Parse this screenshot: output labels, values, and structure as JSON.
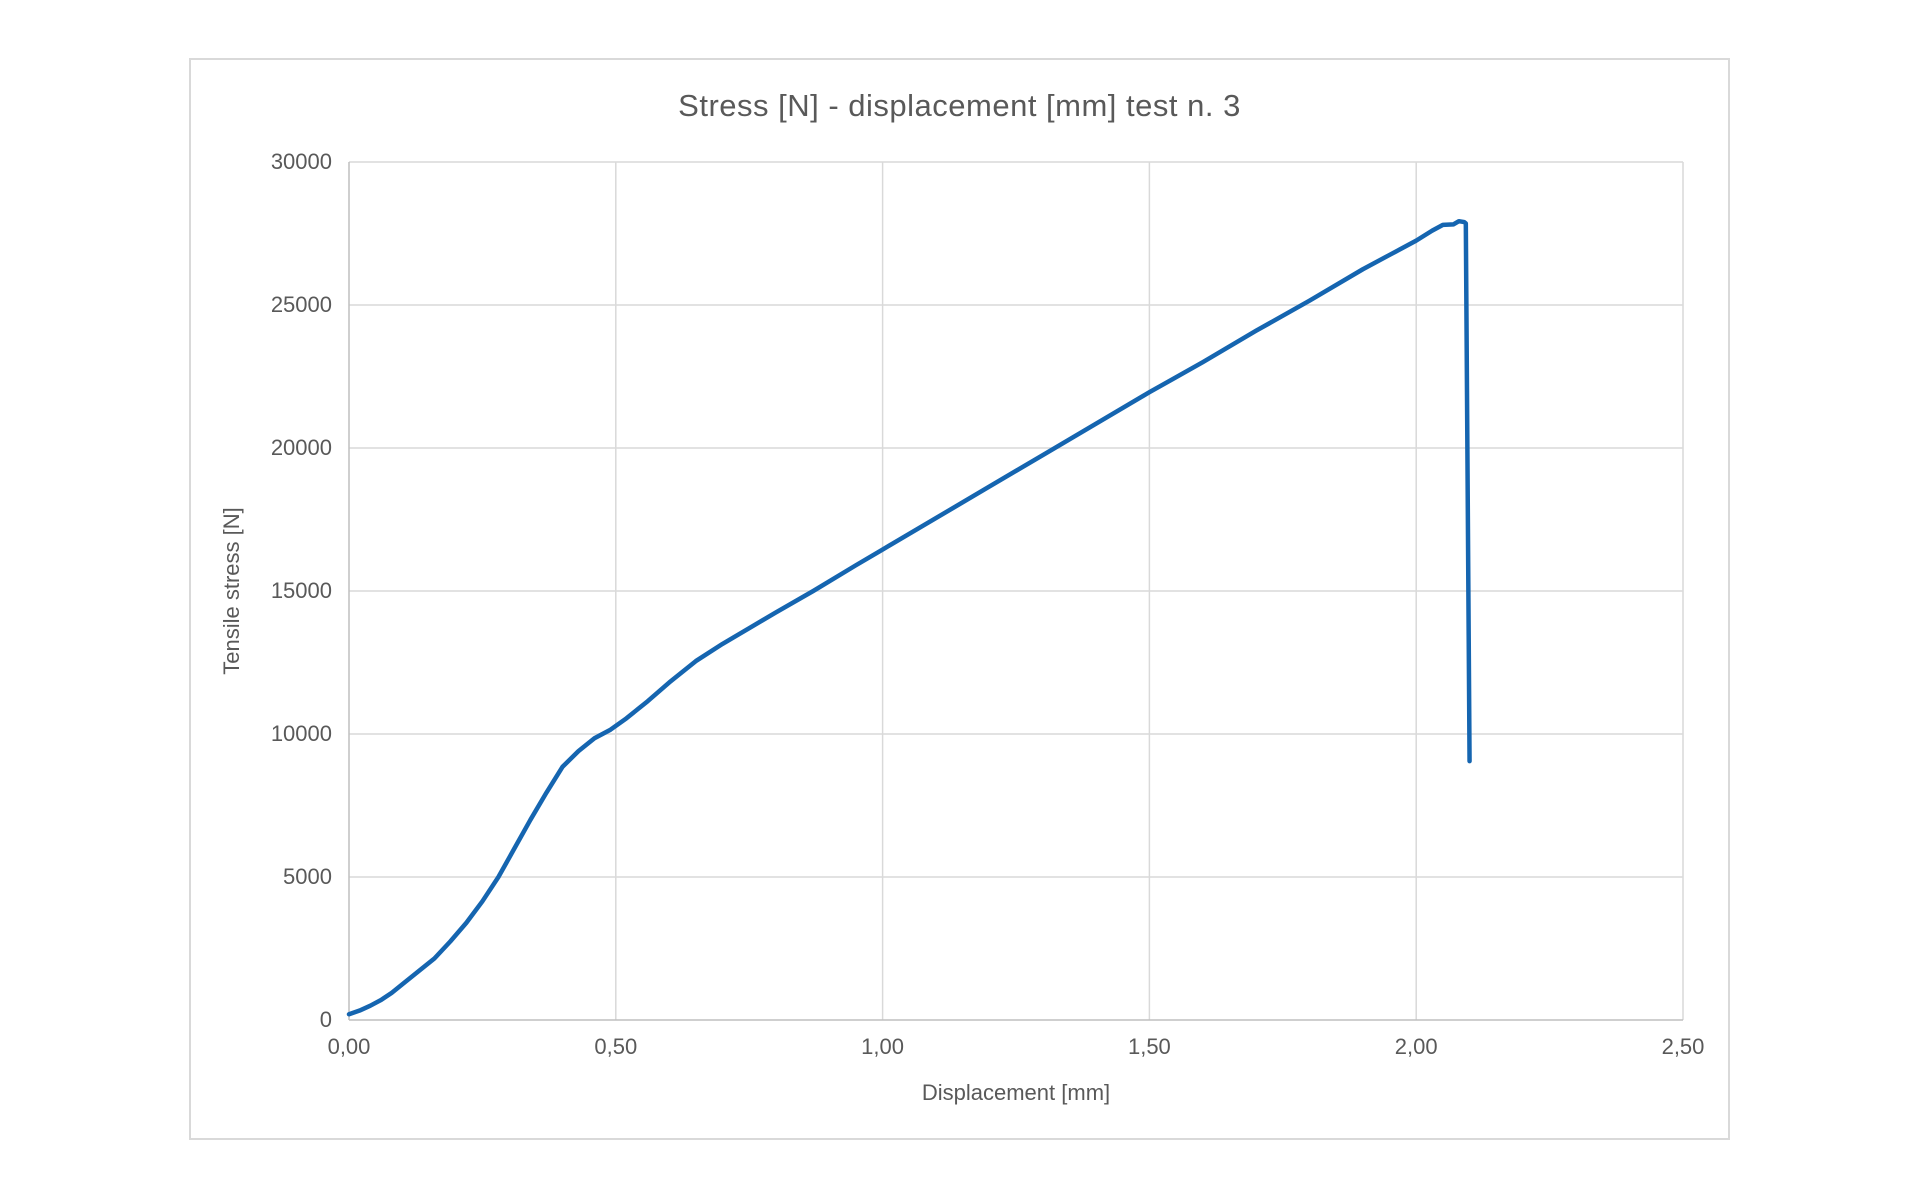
{
  "page": {
    "background": "#FFFFFF"
  },
  "style": {
    "text_color": "#595959",
    "gridline_color": "#D9D9D9",
    "axis_line_color": "#BFBFBF",
    "frame_border_color": "#D9D9D9",
    "plot_background": "#FFFFFF",
    "series_color": "#1565B0"
  },
  "chart_data": {
    "type": "line",
    "title": "Stress [N] - displacement [mm] test n. 3",
    "xlabel": "Displacement [mm]",
    "ylabel": "Tensile stress [N]",
    "xlim": [
      0,
      2.5
    ],
    "ylim": [
      0,
      30000
    ],
    "grid": true,
    "legend_position": "none",
    "x_ticks": [
      {
        "value": 0.0,
        "label": "0,00"
      },
      {
        "value": 0.5,
        "label": "0,50"
      },
      {
        "value": 1.0,
        "label": "1,00"
      },
      {
        "value": 1.5,
        "label": "1,50"
      },
      {
        "value": 2.0,
        "label": "2,00"
      },
      {
        "value": 2.5,
        "label": "2,50"
      }
    ],
    "y_ticks": [
      {
        "value": 0,
        "label": "0"
      },
      {
        "value": 5000,
        "label": "5000"
      },
      {
        "value": 10000,
        "label": "10000"
      },
      {
        "value": 15000,
        "label": "15000"
      },
      {
        "value": 20000,
        "label": "20000"
      },
      {
        "value": 25000,
        "label": "25000"
      },
      {
        "value": 30000,
        "label": "30000"
      }
    ],
    "series": [
      {
        "color": "#1565B0",
        "stroke_width": 4.5,
        "points": [
          [
            0.0,
            200
          ],
          [
            0.02,
            330
          ],
          [
            0.04,
            500
          ],
          [
            0.06,
            700
          ],
          [
            0.08,
            950
          ],
          [
            0.1,
            1250
          ],
          [
            0.13,
            1700
          ],
          [
            0.16,
            2150
          ],
          [
            0.19,
            2750
          ],
          [
            0.22,
            3400
          ],
          [
            0.25,
            4150
          ],
          [
            0.28,
            5000
          ],
          [
            0.31,
            6000
          ],
          [
            0.34,
            7000
          ],
          [
            0.37,
            7950
          ],
          [
            0.4,
            8850
          ],
          [
            0.43,
            9400
          ],
          [
            0.46,
            9850
          ],
          [
            0.49,
            10150
          ],
          [
            0.52,
            10550
          ],
          [
            0.56,
            11150
          ],
          [
            0.6,
            11800
          ],
          [
            0.65,
            12550
          ],
          [
            0.7,
            13150
          ],
          [
            0.75,
            13700
          ],
          [
            0.8,
            14250
          ],
          [
            0.87,
            15000
          ],
          [
            0.95,
            15900
          ],
          [
            1.0,
            16450
          ],
          [
            1.1,
            17550
          ],
          [
            1.2,
            18650
          ],
          [
            1.3,
            19750
          ],
          [
            1.4,
            20850
          ],
          [
            1.5,
            21950
          ],
          [
            1.6,
            23000
          ],
          [
            1.7,
            24100
          ],
          [
            1.8,
            25150
          ],
          [
            1.9,
            26250
          ],
          [
            1.95,
            26750
          ],
          [
            2.0,
            27250
          ],
          [
            2.03,
            27600
          ],
          [
            2.05,
            27800
          ],
          [
            2.07,
            27820
          ],
          [
            2.08,
            27930
          ],
          [
            2.09,
            27900
          ],
          [
            2.093,
            27850
          ],
          [
            2.1,
            9050
          ]
        ]
      }
    ]
  }
}
